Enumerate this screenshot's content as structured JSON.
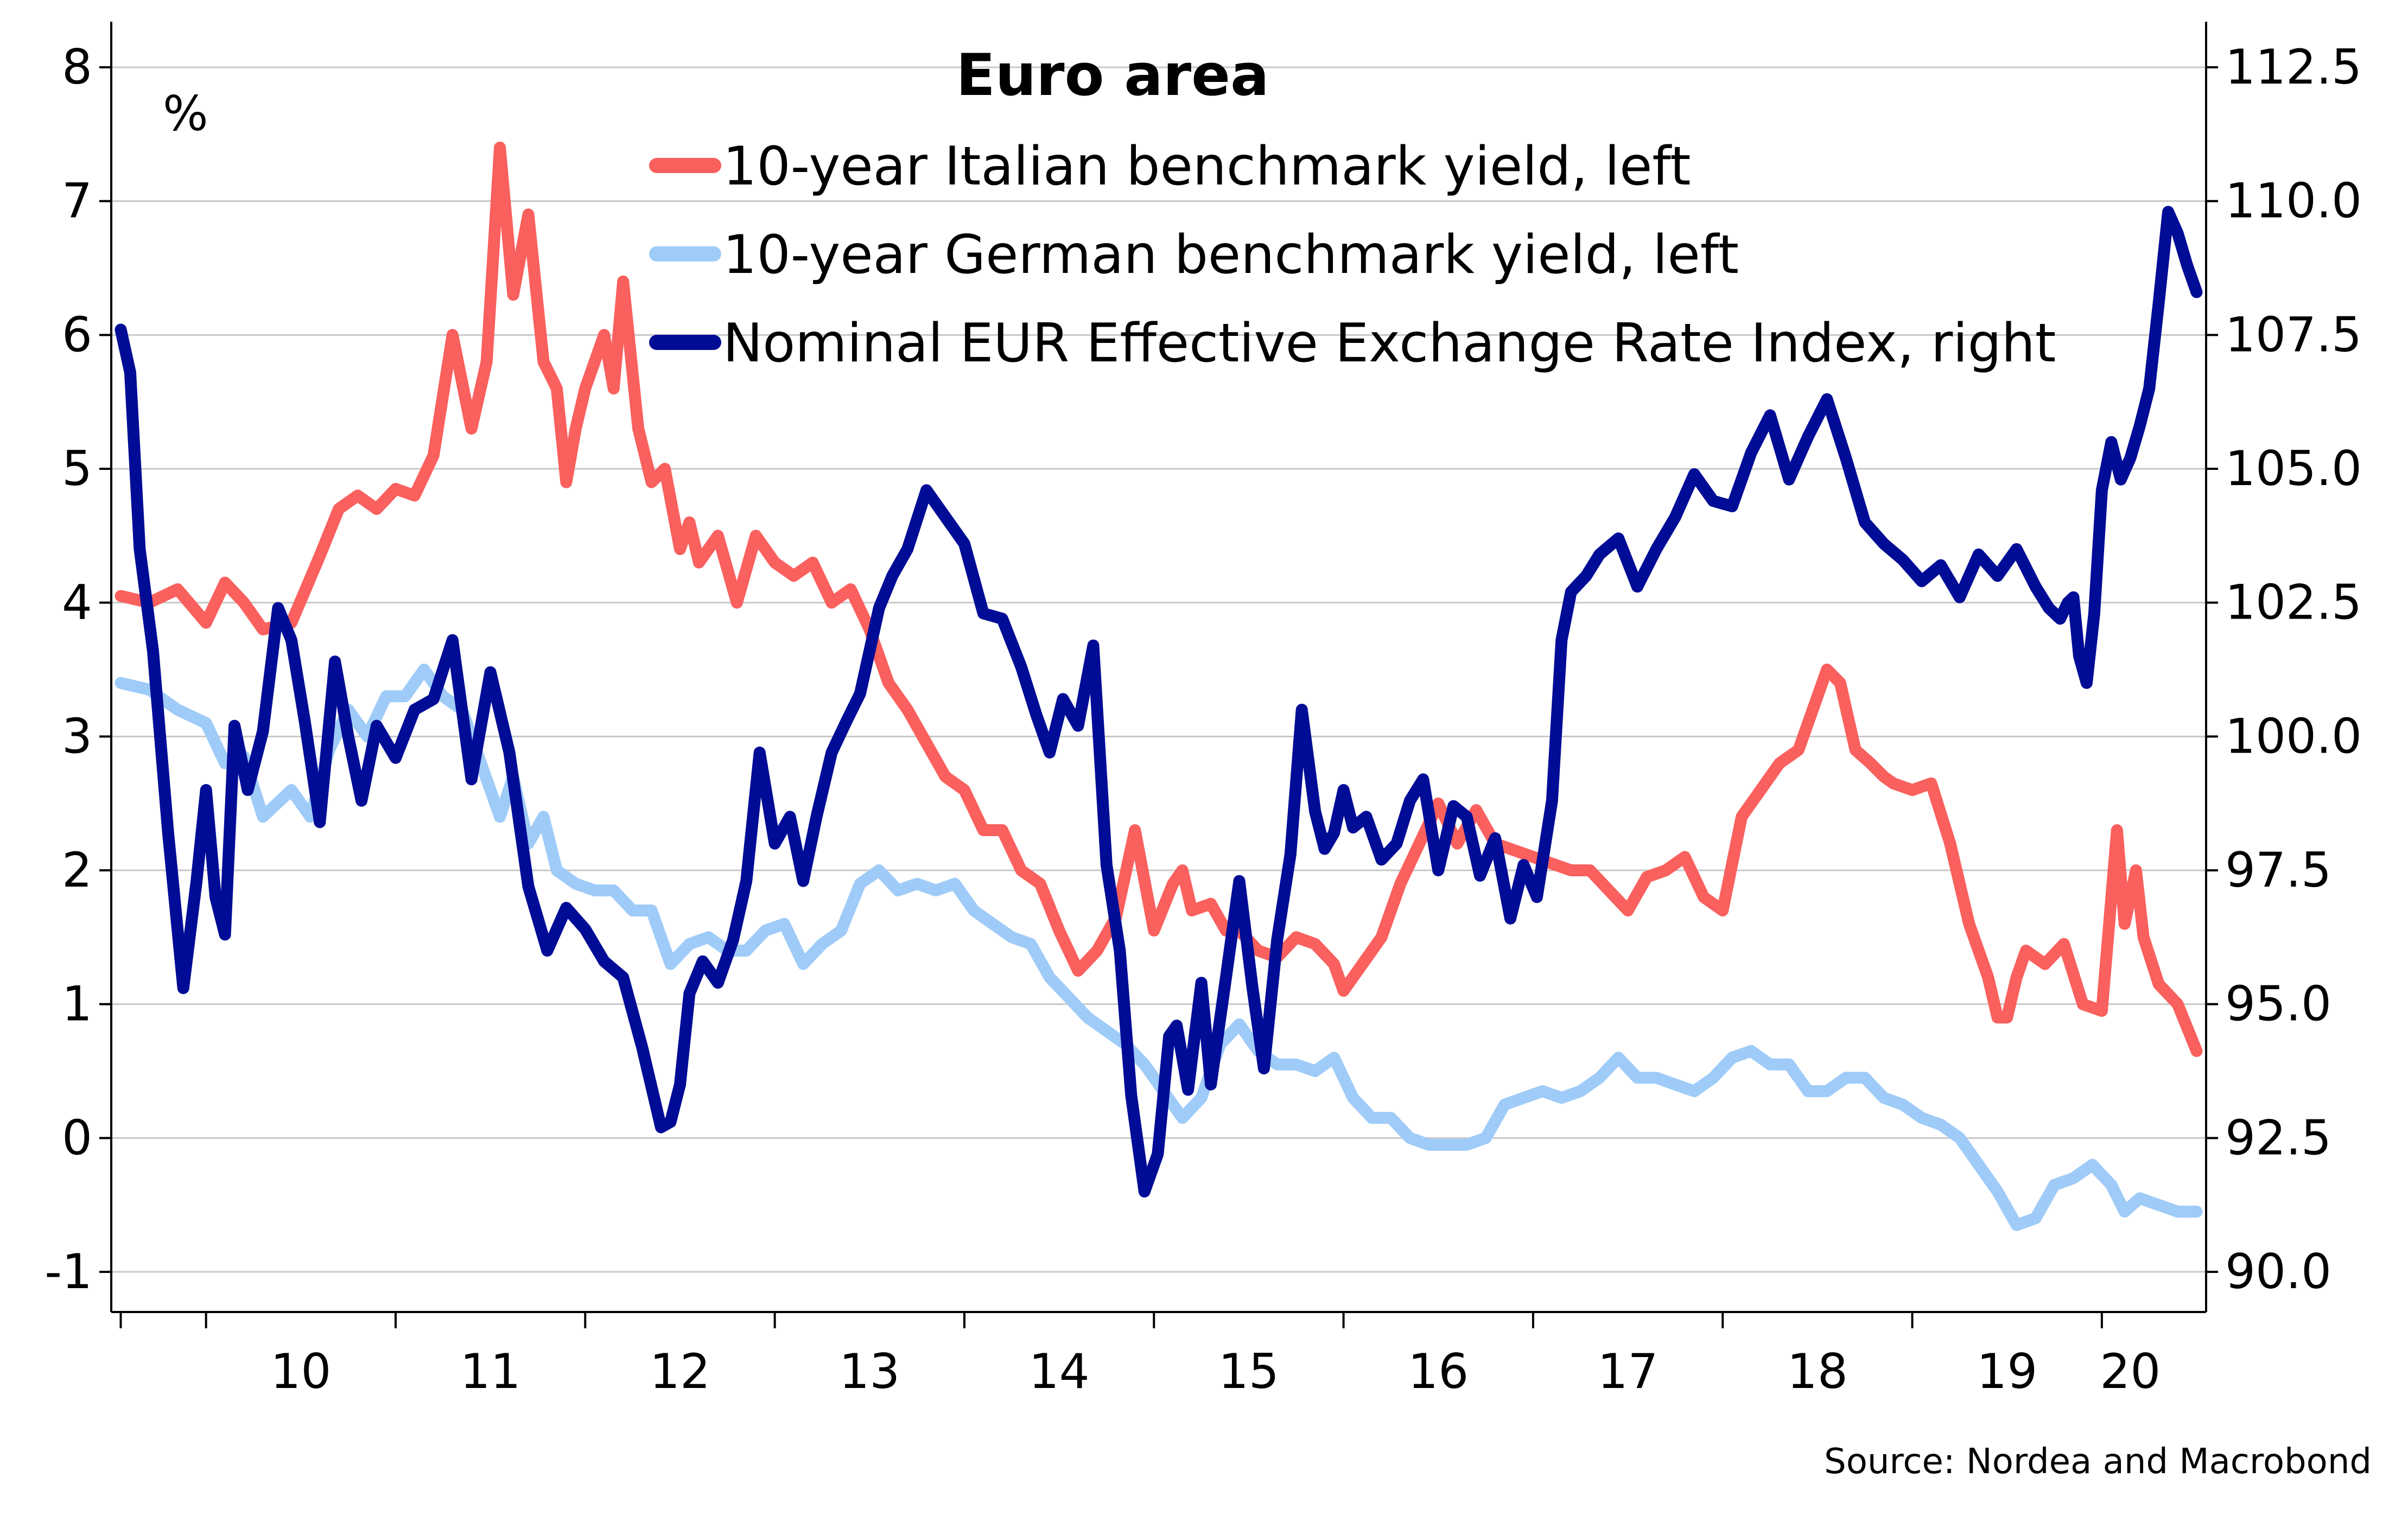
{
  "chart_data": {
    "type": "line",
    "title": "Euro area",
    "left_unit": "%",
    "source": "Source: Nordea and Macrobond",
    "x_ticks": [
      "10",
      "11",
      "12",
      "13",
      "14",
      "15",
      "16",
      "17",
      "18",
      "19",
      "20"
    ],
    "left_axis": {
      "ylim": [
        -1.3,
        8.3
      ],
      "ticks": [
        -1,
        0,
        1,
        2,
        3,
        4,
        5,
        6,
        7,
        8
      ],
      "tick_labels": [
        "-1",
        "0",
        "1",
        "2",
        "3",
        "4",
        "5",
        "6",
        "7",
        "8"
      ]
    },
    "right_axis": {
      "ylim": [
        89.25,
        113.25
      ],
      "ticks": [
        90,
        92.5,
        95,
        97.5,
        100,
        102.5,
        105,
        107.5,
        110,
        112.5
      ],
      "tick_labels": [
        "90.0",
        "92.5",
        "95.0",
        "97.5",
        "100.0",
        "102.5",
        "105.0",
        "107.5",
        "110.0",
        "112.5"
      ]
    },
    "xlim": [
      2009.5,
      2020.55
    ],
    "grid": true,
    "legend_position": "top-center",
    "series": [
      {
        "name": "10-year Italian benchmark yield, left",
        "axis": "left",
        "color": "#f9605e",
        "x": [
          2009.55,
          2009.7,
          2009.85,
          2010.0,
          2010.1,
          2010.2,
          2010.3,
          2010.45,
          2010.6,
          2010.7,
          2010.8,
          2010.9,
          2011.0,
          2011.1,
          2011.2,
          2011.3,
          2011.4,
          2011.48,
          2011.55,
          2011.62,
          2011.7,
          2011.78,
          2011.85,
          2011.9,
          2011.95,
          2012.0,
          2012.1,
          2012.15,
          2012.2,
          2012.28,
          2012.35,
          2012.42,
          2012.5,
          2012.55,
          2012.6,
          2012.7,
          2012.8,
          2012.9,
          2013.0,
          2013.1,
          2013.2,
          2013.3,
          2013.4,
          2013.5,
          2013.6,
          2013.7,
          2013.8,
          2013.9,
          2014.0,
          2014.1,
          2014.2,
          2014.3,
          2014.4,
          2014.5,
          2014.6,
          2014.7,
          2014.8,
          2014.9,
          2015.0,
          2015.1,
          2015.15,
          2015.2,
          2015.3,
          2015.38,
          2015.45,
          2015.55,
          2015.65,
          2015.75,
          2015.85,
          2015.95,
          2016.0,
          2016.1,
          2016.2,
          2016.3,
          2016.4,
          2016.5,
          2016.6,
          2016.7,
          2016.8,
          2016.9,
          2017.0,
          2017.1,
          2017.2,
          2017.3,
          2017.4,
          2017.5,
          2017.6,
          2017.7,
          2017.8,
          2017.9,
          2018.0,
          2018.1,
          2018.2,
          2018.3,
          2018.4,
          2018.5,
          2018.55,
          2018.62,
          2018.7,
          2018.78,
          2018.85,
          2018.9,
          2019.0,
          2019.1,
          2019.2,
          2019.3,
          2019.4,
          2019.45,
          2019.5,
          2019.55,
          2019.6,
          2019.7,
          2019.8,
          2019.9,
          2020.0,
          2020.08,
          2020.12,
          2020.18,
          2020.22,
          2020.3,
          2020.4,
          2020.5
        ],
        "values": [
          4.05,
          4.0,
          4.1,
          3.85,
          4.15,
          4.0,
          3.8,
          3.85,
          4.35,
          4.7,
          4.8,
          4.7,
          4.85,
          4.8,
          5.1,
          6.0,
          5.3,
          5.8,
          7.4,
          6.3,
          6.9,
          5.8,
          5.6,
          4.9,
          5.3,
          5.6,
          6.0,
          5.6,
          6.4,
          5.3,
          4.9,
          5.0,
          4.4,
          4.6,
          4.3,
          4.5,
          4.0,
          4.5,
          4.3,
          4.2,
          4.3,
          4.0,
          4.1,
          3.8,
          3.4,
          3.2,
          2.95,
          2.7,
          2.6,
          2.3,
          2.3,
          2.0,
          1.9,
          1.55,
          1.25,
          1.4,
          1.65,
          2.3,
          1.55,
          1.9,
          2.0,
          1.7,
          1.75,
          1.55,
          1.55,
          1.4,
          1.35,
          1.5,
          1.45,
          1.3,
          1.1,
          1.3,
          1.5,
          1.9,
          2.2,
          2.5,
          2.2,
          2.45,
          2.2,
          2.15,
          2.1,
          2.05,
          2.0,
          2.0,
          1.85,
          1.7,
          1.95,
          2.0,
          2.1,
          1.8,
          1.7,
          2.4,
          2.6,
          2.8,
          2.9,
          3.3,
          3.5,
          3.4,
          2.9,
          2.8,
          2.7,
          2.65,
          2.6,
          2.65,
          2.2,
          1.6,
          1.2,
          0.9,
          0.9,
          1.2,
          1.4,
          1.3,
          1.45,
          1.0,
          0.95,
          2.3,
          1.6,
          2.0,
          1.5,
          1.15,
          1.0,
          0.65
        ]
      },
      {
        "name": "10-year German benchmark yield, left",
        "axis": "left",
        "color": "#9fcbf8",
        "x": [
          2009.55,
          2009.7,
          2009.85,
          2010.0,
          2010.1,
          2010.2,
          2010.3,
          2010.45,
          2010.55,
          2010.65,
          2010.75,
          2010.85,
          2010.95,
          2011.05,
          2011.15,
          2011.25,
          2011.35,
          2011.45,
          2011.55,
          2011.62,
          2011.7,
          2011.78,
          2011.85,
          2011.95,
          2012.05,
          2012.15,
          2012.25,
          2012.35,
          2012.45,
          2012.55,
          2012.65,
          2012.75,
          2012.85,
          2012.95,
          2013.05,
          2013.15,
          2013.25,
          2013.35,
          2013.45,
          2013.55,
          2013.65,
          2013.75,
          2013.85,
          2013.95,
          2014.05,
          2014.15,
          2014.25,
          2014.35,
          2014.45,
          2014.55,
          2014.65,
          2014.75,
          2014.85,
          2014.95,
          2015.05,
          2015.15,
          2015.25,
          2015.35,
          2015.45,
          2015.55,
          2015.65,
          2015.75,
          2015.85,
          2015.95,
          2016.05,
          2016.15,
          2016.25,
          2016.35,
          2016.45,
          2016.55,
          2016.65,
          2016.75,
          2016.85,
          2016.95,
          2017.05,
          2017.15,
          2017.25,
          2017.35,
          2017.45,
          2017.55,
          2017.65,
          2017.75,
          2017.85,
          2017.95,
          2018.05,
          2018.15,
          2018.25,
          2018.35,
          2018.45,
          2018.55,
          2018.65,
          2018.75,
          2018.85,
          2018.95,
          2019.05,
          2019.15,
          2019.25,
          2019.35,
          2019.45,
          2019.55,
          2019.65,
          2019.75,
          2019.85,
          2019.95,
          2020.05,
          2020.12,
          2020.2,
          2020.3,
          2020.4,
          2020.5
        ],
        "values": [
          3.4,
          3.35,
          3.2,
          3.1,
          2.8,
          2.85,
          2.4,
          2.6,
          2.4,
          2.9,
          3.2,
          3.0,
          3.3,
          3.3,
          3.5,
          3.3,
          3.2,
          2.8,
          2.4,
          2.7,
          2.2,
          2.4,
          2.0,
          1.9,
          1.85,
          1.85,
          1.7,
          1.7,
          1.3,
          1.45,
          1.5,
          1.4,
          1.4,
          1.55,
          1.6,
          1.3,
          1.45,
          1.55,
          1.9,
          2.0,
          1.85,
          1.9,
          1.85,
          1.9,
          1.7,
          1.6,
          1.5,
          1.45,
          1.2,
          1.05,
          0.9,
          0.8,
          0.7,
          0.55,
          0.35,
          0.15,
          0.3,
          0.7,
          0.85,
          0.65,
          0.55,
          0.55,
          0.5,
          0.6,
          0.3,
          0.15,
          0.15,
          0.0,
          -0.05,
          -0.05,
          -0.05,
          0.0,
          0.25,
          0.3,
          0.35,
          0.3,
          0.35,
          0.45,
          0.6,
          0.45,
          0.45,
          0.4,
          0.35,
          0.45,
          0.6,
          0.65,
          0.55,
          0.55,
          0.35,
          0.35,
          0.45,
          0.45,
          0.3,
          0.25,
          0.15,
          0.1,
          0.0,
          -0.2,
          -0.4,
          -0.65,
          -0.6,
          -0.35,
          -0.3,
          -0.2,
          -0.35,
          -0.55,
          -0.45,
          -0.5,
          -0.55,
          -0.55
        ]
      },
      {
        "name": "Nominal EUR Effective Exchange Rate Index, right",
        "axis": "right",
        "color": "#000c96",
        "x": [
          2009.55,
          2009.6,
          2009.65,
          2009.72,
          2009.8,
          2009.88,
          2009.95,
          2010.0,
          2010.05,
          2010.1,
          2010.15,
          2010.22,
          2010.3,
          2010.38,
          2010.45,
          2010.52,
          2010.6,
          2010.68,
          2010.75,
          2010.82,
          2010.9,
          2011.0,
          2011.1,
          2011.2,
          2011.3,
          2011.4,
          2011.5,
          2011.6,
          2011.7,
          2011.8,
          2011.9,
          2012.0,
          2012.1,
          2012.2,
          2012.3,
          2012.4,
          2012.45,
          2012.5,
          2012.55,
          2012.62,
          2012.7,
          2012.78,
          2012.85,
          2012.92,
          2013.0,
          2013.08,
          2013.15,
          2013.22,
          2013.3,
          2013.38,
          2013.45,
          2013.55,
          2013.62,
          2013.7,
          2013.8,
          2013.9,
          2014.0,
          2014.1,
          2014.2,
          2014.3,
          2014.38,
          2014.45,
          2014.52,
          2014.6,
          2014.68,
          2014.75,
          2014.82,
          2014.88,
          2014.95,
          2015.02,
          2015.08,
          2015.12,
          2015.18,
          2015.25,
          2015.3,
          2015.38,
          2015.45,
          2015.52,
          2015.58,
          2015.65,
          2015.72,
          2015.78,
          2015.85,
          2015.9,
          2015.95,
          2016.0,
          2016.05,
          2016.12,
          2016.2,
          2016.28,
          2016.35,
          2016.42,
          2016.5,
          2016.58,
          2016.65,
          2016.72,
          2016.8,
          2016.88,
          2016.95,
          2017.02,
          2017.1,
          2017.15,
          2017.2,
          2017.28,
          2017.35,
          2017.45,
          2017.55,
          2017.65,
          2017.75,
          2017.85,
          2017.95,
          2018.05,
          2018.15,
          2018.25,
          2018.35,
          2018.45,
          2018.55,
          2018.65,
          2018.75,
          2018.85,
          2018.95,
          2019.05,
          2019.15,
          2019.25,
          2019.35,
          2019.45,
          2019.55,
          2019.65,
          2019.72,
          2019.78,
          2019.82,
          2019.85,
          2019.88,
          2019.92,
          2019.96,
          2020.0,
          2020.05,
          2020.1,
          2020.15,
          2020.2,
          2020.25,
          2020.3,
          2020.35,
          2020.4,
          2020.45,
          2020.5
        ],
        "values": [
          107.6,
          106.8,
          103.5,
          101.6,
          98.2,
          95.3,
          97.3,
          99.0,
          97.0,
          96.3,
          100.2,
          99.0,
          100.1,
          102.4,
          101.8,
          100.3,
          98.4,
          101.4,
          100.0,
          98.8,
          100.2,
          99.6,
          100.5,
          100.7,
          101.8,
          99.2,
          101.2,
          99.7,
          97.2,
          96.0,
          96.8,
          96.4,
          95.8,
          95.5,
          94.2,
          92.7,
          92.8,
          93.5,
          95.2,
          95.8,
          95.4,
          96.2,
          97.3,
          99.7,
          98.0,
          98.5,
          97.3,
          98.5,
          99.7,
          100.3,
          100.8,
          102.4,
          103.0,
          103.5,
          104.6,
          104.1,
          103.6,
          102.3,
          102.2,
          101.3,
          100.4,
          99.7,
          100.7,
          100.2,
          101.7,
          97.6,
          96.0,
          93.3,
          91.5,
          92.2,
          94.4,
          94.6,
          93.4,
          95.4,
          93.5,
          95.5,
          97.3,
          95.3,
          93.8,
          96.2,
          97.8,
          100.5,
          98.6,
          97.9,
          98.2,
          99.0,
          98.3,
          98.5,
          97.7,
          98.0,
          98.8,
          99.2,
          97.5,
          98.7,
          98.5,
          97.4,
          98.1,
          96.6,
          97.6,
          97.0,
          98.8,
          101.8,
          102.7,
          103.0,
          103.4,
          103.7,
          102.8,
          103.5,
          104.1,
          104.9,
          104.4,
          104.3,
          105.3,
          106.0,
          104.8,
          105.6,
          106.3,
          105.2,
          104.0,
          103.6,
          103.3,
          102.9,
          103.2,
          102.6,
          103.4,
          103.0,
          103.5,
          102.8,
          102.4,
          102.2,
          102.5,
          102.6,
          101.5,
          101.0,
          102.3,
          104.6,
          105.5,
          104.8,
          105.2,
          105.8,
          106.5,
          108.1,
          109.8,
          109.4,
          108.8,
          108.3
        ]
      }
    ]
  }
}
